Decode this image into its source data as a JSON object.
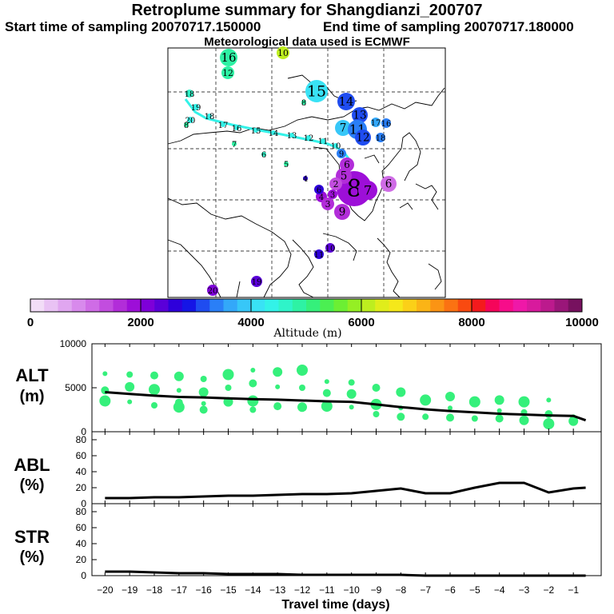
{
  "header": {
    "title": "Retroplume summary for Shangdianzi_200707",
    "start": "Start time of sampling 20070717.150000",
    "end": "End time of sampling 20070717.180000",
    "met": "Meteorological data used is ECMWF"
  },
  "colorbar": {
    "ticks": [
      "0",
      "2000",
      "4000",
      "6000",
      "8000",
      "10000"
    ],
    "label": "Altitude (m)",
    "colors": [
      "#f2ddf7",
      "#e9c2f4",
      "#e0a6f0",
      "#d88aec",
      "#cf6ce6",
      "#c24ddf",
      "#b22dd9",
      "#9d0fd8",
      "#7e00d9",
      "#5a00d9",
      "#2e00db",
      "#1515e6",
      "#1f4cf0",
      "#2a7ff7",
      "#33a8f9",
      "#37c7f8",
      "#39e2f5",
      "#33f2e8",
      "#2ff4c9",
      "#2ef2a4",
      "#35f07b",
      "#4bef52",
      "#6cef33",
      "#95ef24",
      "#bdee1f",
      "#e0ed1b",
      "#f5e81a",
      "#fbd018",
      "#fbb416",
      "#fb9414",
      "#fb7212",
      "#f94a10",
      "#f41a1d",
      "#f5055a",
      "#f70d8a",
      "#ef18a8",
      "#d81a9d",
      "#bc1a8d",
      "#9a1679",
      "#77115f"
    ]
  },
  "map_labels": [
    {
      "text": "16",
      "color": "#2ef2a4"
    },
    {
      "text": "10",
      "color": "#bdee1f"
    },
    {
      "text": "12",
      "color": "#2ef2a4"
    },
    {
      "text": "15",
      "color": "#39e2f5"
    },
    {
      "text": "14",
      "color": "#1f4cf0"
    },
    {
      "text": "13",
      "color": "#1f4cf0"
    },
    {
      "text": "18",
      "color": "#2ff4c9"
    },
    {
      "text": "19",
      "color": "#33f2e8"
    },
    {
      "text": "20",
      "color": "#33f2e8"
    },
    {
      "text": "18",
      "color": "#33f2e8"
    },
    {
      "text": "17",
      "color": "#33f2e8"
    },
    {
      "text": "16",
      "color": "#33f2e8"
    },
    {
      "text": "15",
      "color": "#33f2e8"
    },
    {
      "text": "14",
      "color": "#33f2e8"
    },
    {
      "text": "13",
      "color": "#33f2e8"
    },
    {
      "text": "12",
      "color": "#33f2e8"
    },
    {
      "text": "11",
      "color": "#33f2e8"
    },
    {
      "text": "10",
      "color": "#33f2e8"
    },
    {
      "text": "9",
      "color": "#2a7ff7"
    },
    {
      "text": "7",
      "color": "#37c7f8"
    },
    {
      "text": "11",
      "color": "#2a7ff7"
    },
    {
      "text": "12",
      "color": "#1f4cf0"
    },
    {
      "text": "17",
      "color": "#33a8f9"
    },
    {
      "text": "16",
      "color": "#2a7ff7"
    },
    {
      "text": "18",
      "color": "#2a7ff7"
    },
    {
      "text": "8",
      "color": "#2ef2a4"
    },
    {
      "text": "7",
      "color": "#2ef2a4"
    },
    {
      "text": "6",
      "color": "#2ff4c9"
    },
    {
      "text": "5",
      "color": "#2ef2a4"
    },
    {
      "text": "4",
      "color": "#2e00db"
    },
    {
      "text": "8",
      "color": "#2ef2a4"
    },
    {
      "text": "6",
      "color": "#b22dd9"
    },
    {
      "text": "8",
      "color": "#9d0fd8"
    },
    {
      "text": "7",
      "color": "#9d0fd8"
    },
    {
      "text": "5",
      "color": "#b22dd9"
    },
    {
      "text": "4",
      "color": "#9d0fd8"
    },
    {
      "text": "3",
      "color": "#b22dd9"
    },
    {
      "text": "2",
      "color": "#c24ddf"
    },
    {
      "text": "9",
      "color": "#b22dd9"
    },
    {
      "text": "6",
      "color": "#cf6ce6"
    },
    {
      "text": "6",
      "color": "#2e00db"
    },
    {
      "text": "3",
      "color": "#9d0fd8"
    },
    {
      "text": "10",
      "color": "#5a00d9"
    },
    {
      "text": "11",
      "color": "#2e00db"
    },
    {
      "text": "20",
      "color": "#7e00d9"
    },
    {
      "text": "19",
      "color": "#5a00d9"
    }
  ],
  "chart_data": [
    {
      "panel": "ALT",
      "type": "line",
      "ylabel": "ALT (m)",
      "ylim": [
        0,
        10000
      ],
      "yticks": [
        "10000",
        "5000",
        "0"
      ],
      "x": [
        -20,
        -19,
        -18,
        -17,
        -16,
        -15,
        -14,
        -13,
        -12,
        -11,
        -10,
        -9,
        -8,
        -7,
        -6,
        -5,
        -4,
        -3,
        -2,
        -1,
        -0.5
      ],
      "values": [
        4500,
        4300,
        4100,
        3950,
        3900,
        3800,
        3700,
        3650,
        3550,
        3450,
        3400,
        3100,
        2800,
        2550,
        2350,
        2200,
        2050,
        1950,
        1850,
        1800,
        1300
      ],
      "scatter_color": "#35f07b",
      "scatter": [
        [
          -20,
          6600
        ],
        [
          -20,
          4700
        ],
        [
          -20,
          3500
        ],
        [
          -19,
          6500
        ],
        [
          -19,
          5100
        ],
        [
          -19,
          3400
        ],
        [
          -18,
          6400
        ],
        [
          -18,
          4800
        ],
        [
          -18,
          3000
        ],
        [
          -17,
          6300
        ],
        [
          -17,
          4700
        ],
        [
          -17,
          3300
        ],
        [
          -17,
          2800
        ],
        [
          -16,
          6000
        ],
        [
          -16,
          4500
        ],
        [
          -16,
          3200
        ],
        [
          -16,
          2500
        ],
        [
          -15,
          6500
        ],
        [
          -15,
          5000
        ],
        [
          -15,
          3400
        ],
        [
          -14,
          7000
        ],
        [
          -14,
          5500
        ],
        [
          -14,
          3500
        ],
        [
          -14,
          2500
        ],
        [
          -13,
          6800
        ],
        [
          -13,
          5100
        ],
        [
          -13,
          2900
        ],
        [
          -12,
          7000
        ],
        [
          -12,
          5000
        ],
        [
          -12,
          2800
        ],
        [
          -11,
          5700
        ],
        [
          -11,
          4400
        ],
        [
          -11,
          2900
        ],
        [
          -10,
          5600
        ],
        [
          -10,
          4300
        ],
        [
          -10,
          2800
        ],
        [
          -9,
          5000
        ],
        [
          -9,
          3100
        ],
        [
          -9,
          2000
        ],
        [
          -8,
          4500
        ],
        [
          -8,
          2700
        ],
        [
          -8,
          1700
        ],
        [
          -7,
          3600
        ],
        [
          -7,
          1700
        ],
        [
          -6,
          4000
        ],
        [
          -6,
          2700
        ],
        [
          -6,
          1600
        ],
        [
          -5,
          3400
        ],
        [
          -5,
          1500
        ],
        [
          -4,
          3600
        ],
        [
          -4,
          2400
        ],
        [
          -4,
          1500
        ],
        [
          -3,
          3400
        ],
        [
          -3,
          2200
        ],
        [
          -3,
          1300
        ],
        [
          -2,
          3600
        ],
        [
          -2,
          2000
        ],
        [
          -2,
          900
        ],
        [
          -1,
          1600
        ],
        [
          -1,
          1200
        ]
      ]
    },
    {
      "panel": "ABL",
      "type": "line",
      "ylabel": "ABL (%)",
      "ylim": [
        0,
        90
      ],
      "yticks": [
        "80",
        "60",
        "40",
        "20",
        "0"
      ],
      "x": [
        -20,
        -19,
        -18,
        -17,
        -16,
        -15,
        -14,
        -13,
        -12,
        -11,
        -10,
        -9,
        -8,
        -7,
        -6,
        -5,
        -4,
        -3,
        -2,
        -1,
        -0.5
      ],
      "values": [
        7,
        7,
        8,
        8,
        9,
        10,
        10,
        11,
        12,
        12,
        13,
        16,
        19,
        13,
        13,
        20,
        26,
        26,
        14,
        19,
        20
      ]
    },
    {
      "panel": "STR",
      "type": "line",
      "ylabel": "STR (%)",
      "ylim": [
        0,
        90
      ],
      "yticks": [
        "80",
        "60",
        "40",
        "20",
        "0"
      ],
      "x": [
        -20,
        -19,
        -18,
        -17,
        -16,
        -15,
        -14,
        -13,
        -12,
        -11,
        -10,
        -9,
        -8,
        -7,
        -6,
        -5,
        -4,
        -3,
        -2,
        -1,
        -0.5
      ],
      "values": [
        5,
        5,
        4,
        3,
        3,
        2,
        2,
        2,
        1,
        1,
        1,
        1,
        1,
        0,
        0,
        0,
        0,
        0,
        0,
        0,
        0
      ]
    }
  ],
  "xaxis": {
    "title": "Travel time (days)",
    "ticks": [
      "−20",
      "−19",
      "−18",
      "−17",
      "−16",
      "−15",
      "−14",
      "−13",
      "−12",
      "−11",
      "−10",
      "−9",
      "−8",
      "−7",
      "−6",
      "−5",
      "−4",
      "−3",
      "−2",
      "−1"
    ]
  }
}
